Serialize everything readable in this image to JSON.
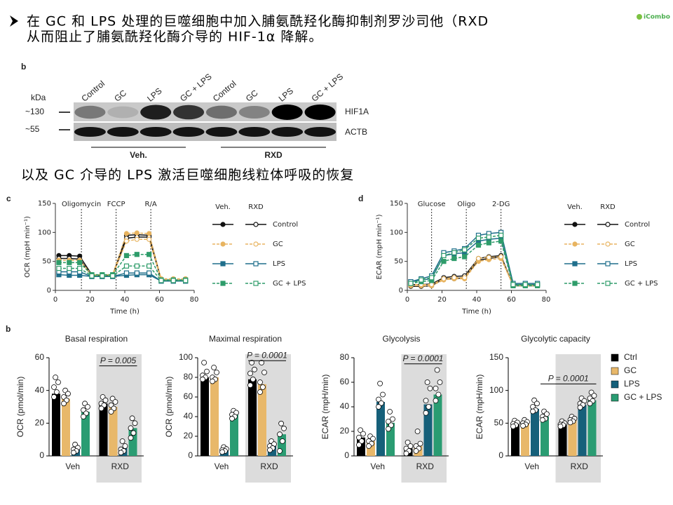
{
  "header": {
    "lines": [
      "在 GC 和 LPS 处理的巨噬细胞中加入脯氨酰羟化酶抑制剂罗沙司他（RXD",
      "从而阻止了脯氨酰羟化酶介导的 HIF-1α 降解。"
    ]
  },
  "logo": "iCombo",
  "blot": {
    "panel": "b",
    "unit": "kDa",
    "markers": [
      "~130",
      "~55"
    ],
    "lanes": [
      "Control",
      "GC",
      "LPS",
      "GC + LPS",
      "Control",
      "GC",
      "LPS",
      "GC + LPS"
    ],
    "bands": [
      "HIF1A",
      "ACTB"
    ],
    "groups": [
      "Veh.",
      "RXD"
    ]
  },
  "subtitle": "以及 GC 介导的 LPS 激活巨噬细胞线粒体呼吸的恢复",
  "bar_panel": "b",
  "bar_legend": {
    "names": [
      "Ctrl",
      "GC",
      "LPS",
      "GC + LPS"
    ],
    "colors": [
      "#000000",
      "#e8b86a",
      "#16607a",
      "#2a9c72"
    ]
  },
  "chart_data": [
    {
      "type": "line",
      "panel": "c",
      "ylabel": "OCR (mpH min⁻¹)",
      "xlabel": "Time (h)",
      "x": [
        2,
        8,
        14,
        21,
        27,
        33,
        41,
        47,
        54,
        61,
        68,
        75
      ],
      "xlim": [
        0,
        80
      ],
      "xticks": [
        0,
        20,
        40,
        60,
        80
      ],
      "ylim": [
        0,
        150
      ],
      "yticks": [
        0,
        50,
        100,
        150
      ],
      "annotations": [
        {
          "label": "Oligomycin",
          "x": 15
        },
        {
          "label": "FCCP",
          "x": 35
        },
        {
          "label": "R/A",
          "x": 55
        }
      ],
      "legend_columns": [
        "Veh.",
        "RXD"
      ],
      "series": [
        {
          "name": "Control",
          "color": "#111111",
          "dashed": false,
          "values": [
            [
              60,
              60,
              59,
              27,
              26,
              26,
              95,
              96,
              95,
              18,
              18,
              18
            ],
            [
              55,
              55,
              54,
              25,
              25,
              25,
              90,
              92,
              92,
              17,
              17,
              17
            ]
          ]
        },
        {
          "name": "GC",
          "color": "#e8b460",
          "dashed": true,
          "values": [
            [
              52,
              52,
              52,
              27,
              27,
              27,
              98,
              99,
              98,
              20,
              20,
              20
            ],
            [
              48,
              48,
              48,
              26,
              26,
              26,
              85,
              88,
              88,
              18,
              18,
              18
            ]
          ]
        },
        {
          "name": "LPS",
          "color": "#1f6f8b",
          "dashed": false,
          "values": [
            [
              27,
              26,
              26,
              24,
              24,
              24,
              26,
              27,
              27,
              16,
              16,
              16
            ],
            [
              32,
              32,
              32,
              24,
              24,
              24,
              30,
              30,
              30,
              16,
              16,
              16
            ]
          ]
        },
        {
          "name": "GC + LPS",
          "color": "#2e9c6a",
          "dashed": true,
          "values": [
            [
              48,
              48,
              48,
              27,
              27,
              27,
              60,
              62,
              62,
              18,
              18,
              18
            ],
            [
              38,
              38,
              38,
              25,
              25,
              25,
              42,
              42,
              42,
              17,
              17,
              17
            ]
          ]
        }
      ]
    },
    {
      "type": "line",
      "panel": "d",
      "ylabel": "ECAR (mpH min⁻¹)",
      "xlabel": "Time (h)",
      "x": [
        2,
        8,
        14,
        21,
        27,
        33,
        41,
        47,
        54,
        61,
        68,
        75
      ],
      "xlim": [
        0,
        80
      ],
      "xticks": [
        0,
        20,
        40,
        60,
        80
      ],
      "ylim": [
        0,
        150
      ],
      "yticks": [
        0,
        50,
        100,
        150
      ],
      "annotations": [
        {
          "label": "Glucose",
          "x": 14
        },
        {
          "label": "Oligo",
          "x": 34
        },
        {
          "label": "2-DG",
          "x": 54
        }
      ],
      "legend_columns": [
        "Veh.",
        "RXD"
      ],
      "series": [
        {
          "name": "Control",
          "color": "#111111",
          "dashed": false,
          "values": [
            [
              7,
              7,
              8,
              20,
              20,
              22,
              52,
              55,
              58,
              8,
              8,
              8
            ],
            [
              10,
              10,
              11,
              22,
              24,
              25,
              55,
              58,
              60,
              8,
              8,
              8
            ]
          ]
        },
        {
          "name": "GC",
          "color": "#e8b460",
          "dashed": true,
          "values": [
            [
              8,
              8,
              8,
              18,
              20,
              20,
              50,
              53,
              55,
              8,
              8,
              8
            ],
            [
              10,
              10,
              10,
              20,
              22,
              22,
              55,
              57,
              58,
              8,
              8,
              8
            ]
          ]
        },
        {
          "name": "LPS",
          "color": "#1f6f8b",
          "dashed": false,
          "values": [
            [
              15,
              18,
              20,
              60,
              63,
              65,
              85,
              88,
              90,
              10,
              10,
              10
            ],
            [
              15,
              20,
              25,
              65,
              68,
              72,
              95,
              98,
              100,
              12,
              12,
              12
            ]
          ]
        },
        {
          "name": "GC + LPS",
          "color": "#2e9c6a",
          "dashed": true,
          "values": [
            [
              12,
              15,
              17,
              50,
              55,
              58,
              78,
              82,
              85,
              8,
              8,
              8
            ],
            [
              12,
              18,
              22,
              60,
              65,
              70,
              90,
              92,
              95,
              10,
              10,
              10
            ]
          ]
        }
      ]
    },
    {
      "type": "bar",
      "title": "Basal respiration",
      "ylabel": "OCR (pmol/min)",
      "categories": [
        "Veh",
        "RXD"
      ],
      "ylim": [
        0,
        60
      ],
      "yticks": [
        0,
        20,
        40,
        60
      ],
      "values": [
        [
          38,
          35,
          4,
          27
        ],
        [
          32,
          30,
          5,
          17
        ]
      ],
      "points": [
        [
          [
            48,
            45,
            42,
            39,
            36
          ],
          [
            40,
            38,
            36,
            34,
            32
          ],
          [
            7,
            5,
            4,
            3,
            2
          ],
          [
            32,
            30,
            28,
            26,
            24
          ]
        ],
        [
          [
            36,
            34,
            32,
            31,
            29
          ],
          [
            35,
            33,
            31,
            29,
            27
          ],
          [
            9,
            6,
            4,
            3,
            2
          ],
          [
            23,
            20,
            17,
            14,
            11
          ]
        ]
      ],
      "bracket": {
        "label": "P = 0.005",
        "y": 55,
        "from": 4,
        "to": 7
      }
    },
    {
      "type": "bar",
      "title": "Maximal respiration",
      "ylabel": "OCR (pmol/min)",
      "categories": [
        "Veh",
        "RXD"
      ],
      "ylim": [
        0,
        100
      ],
      "yticks": [
        0,
        20,
        40,
        60,
        80,
        100
      ],
      "values": [
        [
          80,
          80,
          6,
          42
        ],
        [
          78,
          73,
          10,
          22
        ]
      ],
      "points": [
        [
          [
            95,
            86,
            82,
            80,
            78
          ],
          [
            90,
            85,
            80,
            78,
            76
          ],
          [
            9,
            7,
            6,
            5,
            4
          ],
          [
            46,
            44,
            42,
            40,
            38
          ]
        ],
        [
          [
            95,
            88,
            84,
            78,
            72
          ],
          [
            95,
            85,
            75,
            70,
            65
          ],
          [
            15,
            12,
            10,
            8,
            6
          ],
          [
            33,
            28,
            22,
            15,
            5
          ]
        ]
      ],
      "bracket": {
        "label": "P = 0.0001",
        "y": 97,
        "from": 4,
        "to": 7
      }
    },
    {
      "type": "bar",
      "title": "Glycolysis",
      "ylabel": "ECAR (mpH/min)",
      "categories": [
        "Veh",
        "RXD"
      ],
      "ylim": [
        0,
        80
      ],
      "yticks": [
        0,
        20,
        40,
        60,
        80
      ],
      "values": [
        [
          15,
          12,
          44,
          27
        ],
        [
          6,
          8,
          42,
          50
        ]
      ],
      "points": [
        [
          [
            21,
            18,
            15,
            12,
            9
          ],
          [
            16,
            14,
            12,
            10,
            8
          ],
          [
            59,
            50,
            46,
            43,
            40
          ],
          [
            36,
            30,
            28,
            25,
            22
          ]
        ],
        [
          [
            11,
            8,
            6,
            4,
            2
          ],
          [
            20,
            10,
            8,
            6,
            4
          ],
          [
            60,
            55,
            45,
            40,
            35
          ],
          [
            70,
            60,
            55,
            50,
            45
          ]
        ]
      ],
      "bracket": {
        "label": "P = 0.0001",
        "y": 75,
        "from": 4,
        "to": 7
      }
    },
    {
      "type": "bar",
      "title": "Glycolytic capacity",
      "ylabel": "ECAR (mpH/min)",
      "categories": [
        "Veh",
        "RXD"
      ],
      "ylim": [
        0,
        150
      ],
      "yticks": [
        0,
        50,
        100,
        150
      ],
      "values": [
        [
          48,
          50,
          72,
          60
        ],
        [
          48,
          55,
          78,
          85
        ]
      ],
      "points": [
        [
          [
            54,
            51,
            49,
            47,
            45
          ],
          [
            55,
            52,
            50,
            48,
            46
          ],
          [
            85,
            80,
            75,
            70,
            68
          ],
          [
            68,
            64,
            60,
            57,
            55
          ]
        ],
        [
          [
            53,
            50,
            48,
            47,
            45
          ],
          [
            60,
            57,
            55,
            53,
            51
          ],
          [
            88,
            84,
            80,
            78,
            74
          ],
          [
            97,
            92,
            88,
            84,
            80
          ]
        ]
      ],
      "bracket": {
        "label": "P = 0.0001",
        "y": 110,
        "from": 3,
        "to": 7
      }
    }
  ]
}
